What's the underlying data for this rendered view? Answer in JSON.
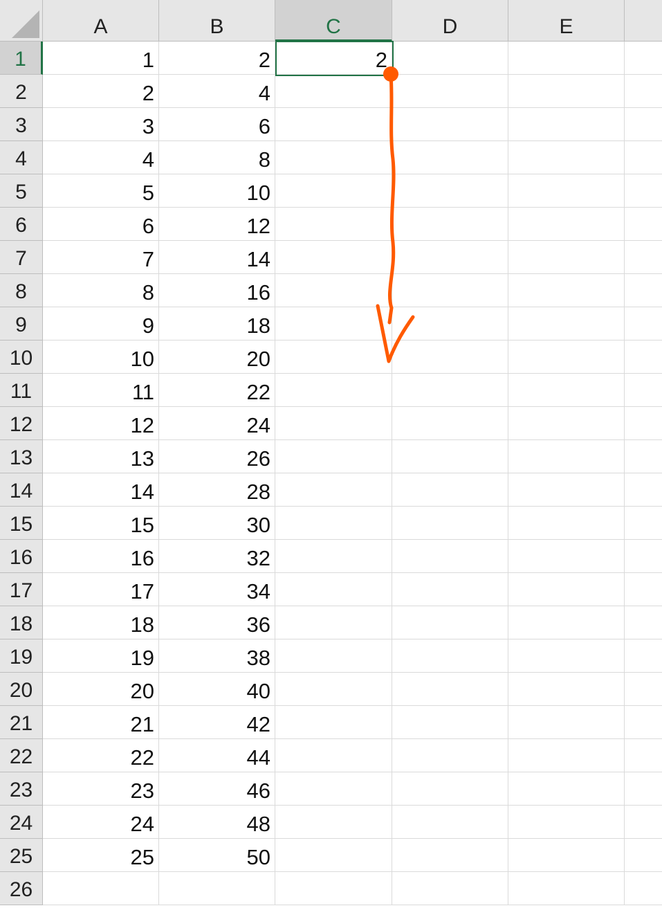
{
  "columns": [
    "A",
    "B",
    "C",
    "D",
    "E"
  ],
  "active_column": "C",
  "active_row": "1",
  "rows": [
    {
      "n": "1",
      "a": "1",
      "b": "2",
      "c": "2"
    },
    {
      "n": "2",
      "a": "2",
      "b": "4",
      "c": ""
    },
    {
      "n": "3",
      "a": "3",
      "b": "6",
      "c": ""
    },
    {
      "n": "4",
      "a": "4",
      "b": "8",
      "c": ""
    },
    {
      "n": "5",
      "a": "5",
      "b": "10",
      "c": ""
    },
    {
      "n": "6",
      "a": "6",
      "b": "12",
      "c": ""
    },
    {
      "n": "7",
      "a": "7",
      "b": "14",
      "c": ""
    },
    {
      "n": "8",
      "a": "8",
      "b": "16",
      "c": ""
    },
    {
      "n": "9",
      "a": "9",
      "b": "18",
      "c": ""
    },
    {
      "n": "10",
      "a": "10",
      "b": "20",
      "c": ""
    },
    {
      "n": "11",
      "a": "11",
      "b": "22",
      "c": ""
    },
    {
      "n": "12",
      "a": "12",
      "b": "24",
      "c": ""
    },
    {
      "n": "13",
      "a": "13",
      "b": "26",
      "c": ""
    },
    {
      "n": "14",
      "a": "14",
      "b": "28",
      "c": ""
    },
    {
      "n": "15",
      "a": "15",
      "b": "30",
      "c": ""
    },
    {
      "n": "16",
      "a": "16",
      "b": "32",
      "c": ""
    },
    {
      "n": "17",
      "a": "17",
      "b": "34",
      "c": ""
    },
    {
      "n": "18",
      "a": "18",
      "b": "36",
      "c": ""
    },
    {
      "n": "19",
      "a": "19",
      "b": "38",
      "c": ""
    },
    {
      "n": "20",
      "a": "20",
      "b": "40",
      "c": ""
    },
    {
      "n": "21",
      "a": "21",
      "b": "42",
      "c": ""
    },
    {
      "n": "22",
      "a": "22",
      "b": "44",
      "c": ""
    },
    {
      "n": "23",
      "a": "23",
      "b": "46",
      "c": ""
    },
    {
      "n": "24",
      "a": "24",
      "b": "48",
      "c": ""
    },
    {
      "n": "25",
      "a": "25",
      "b": "50",
      "c": ""
    },
    {
      "n": "26",
      "a": "",
      "b": "",
      "c": ""
    }
  ],
  "colors": {
    "selection": "#217346",
    "annotation": "#ff5a00",
    "header_bg": "#e6e6e6",
    "gridline": "#dadada"
  },
  "annotation": {
    "kind": "hand-drawn fill-down arrow",
    "icon": "fill-handle-drag-arrow-icon"
  }
}
